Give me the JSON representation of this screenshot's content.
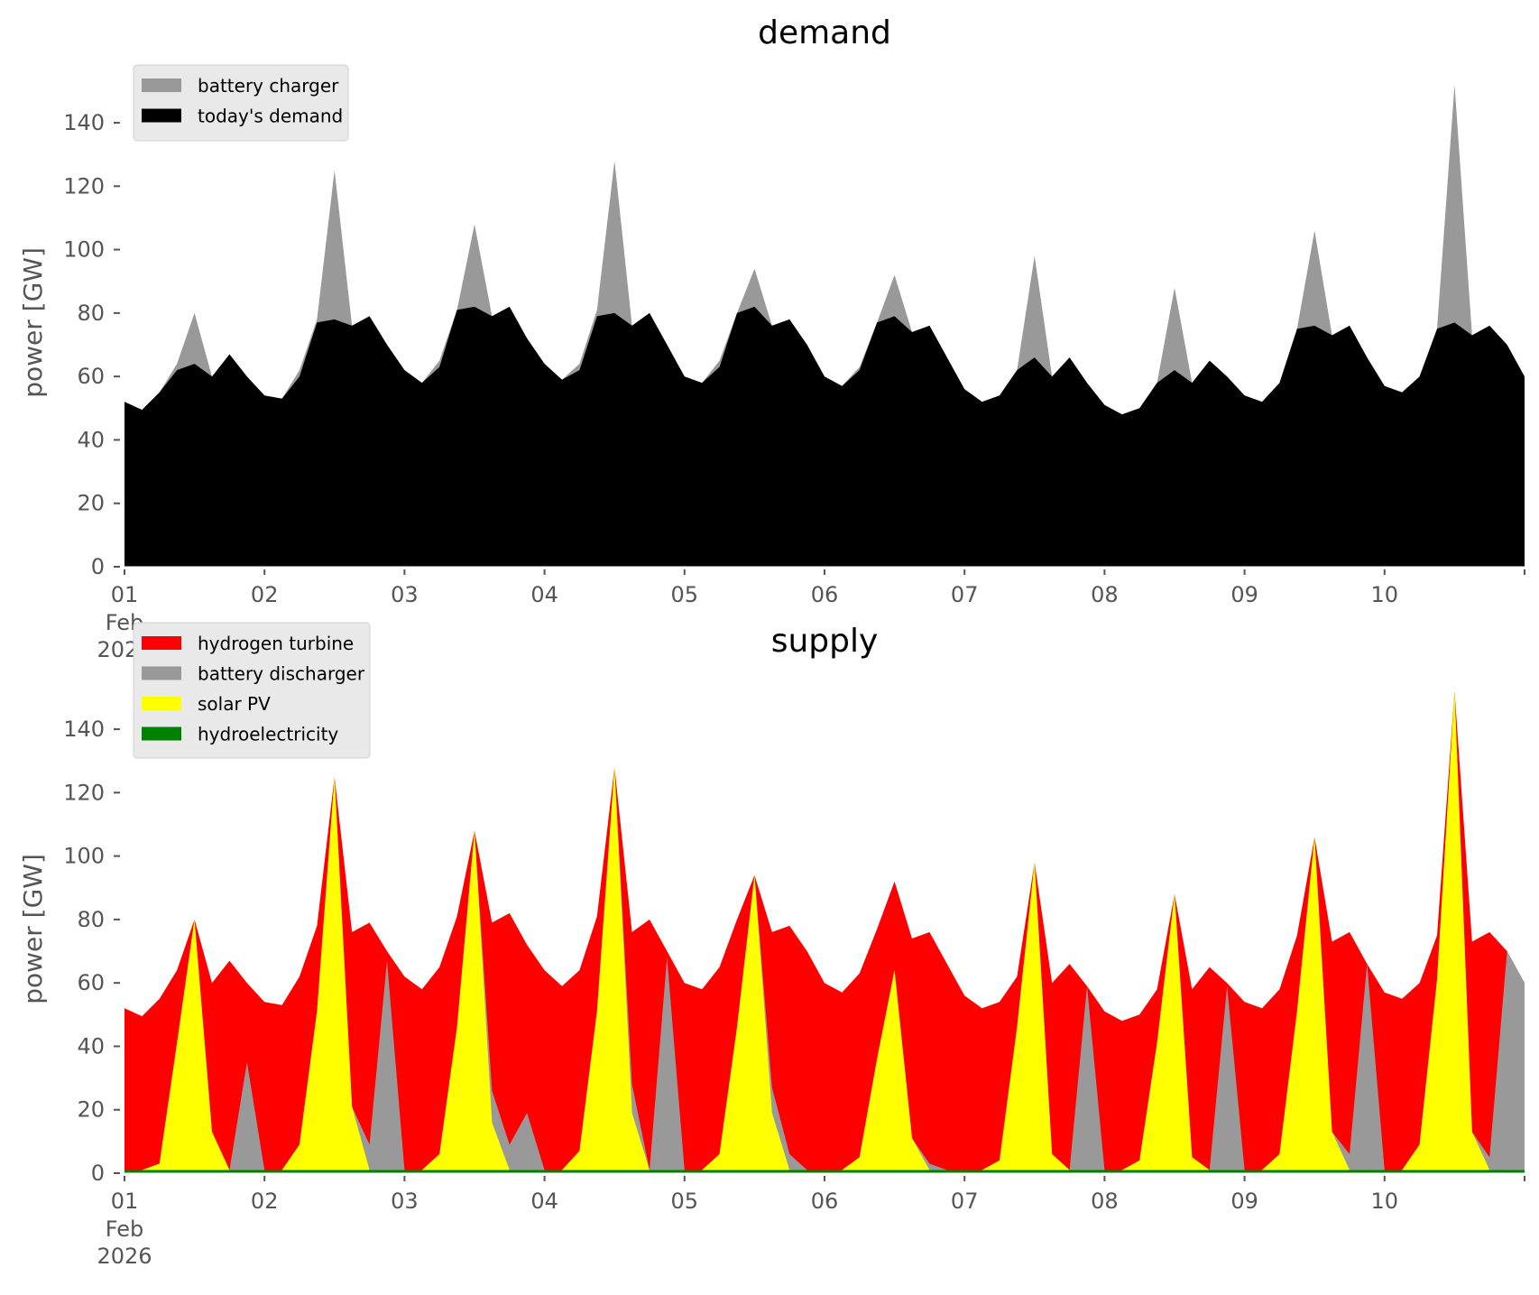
{
  "chart_data": [
    {
      "type": "area",
      "title": "demand",
      "ylabel": "power [GW]",
      "xlabel": "",
      "ylim": [
        0,
        155
      ],
      "yticks": [
        0,
        20,
        40,
        60,
        80,
        100,
        120,
        140
      ],
      "xticks": [
        "01",
        "02",
        "03",
        "04",
        "05",
        "06",
        "07",
        "08",
        "09",
        "10"
      ],
      "xtick_first_extra": [
        "Feb",
        "2026"
      ],
      "time_start": "2026-02-01 00:00",
      "step_hours": 3,
      "legend_placement": "top-left",
      "grid": false,
      "series": [
        {
          "name": "battery charger",
          "color": "#999999",
          "stacked_on": "today's demand",
          "values": [
            0,
            0,
            0,
            2,
            16,
            0,
            0,
            0,
            0,
            0,
            2,
            1,
            47,
            0,
            0,
            0,
            0,
            0,
            2,
            0,
            26,
            0,
            0,
            0,
            0,
            0,
            2,
            2,
            48,
            0,
            0,
            0,
            0,
            0,
            2,
            0,
            12,
            0,
            0,
            0,
            0,
            0,
            1,
            0,
            13,
            0,
            0,
            0,
            0,
            0,
            0,
            0,
            32,
            0,
            0,
            0,
            0,
            0,
            0,
            0,
            26,
            0,
            0,
            0,
            0,
            0,
            0,
            0,
            30,
            0,
            0,
            0,
            0,
            0,
            0,
            0,
            75,
            0,
            0,
            0,
            0
          ]
        },
        {
          "name": "today's demand",
          "color": "#000000",
          "values": [
            52,
            49.5,
            55,
            62,
            64,
            60,
            67,
            60,
            54,
            53,
            60,
            77,
            78,
            76,
            79,
            70,
            62,
            58,
            63,
            81,
            82,
            79,
            82,
            72,
            64,
            59,
            62,
            79,
            80,
            76,
            80,
            70,
            60,
            58,
            63,
            80,
            82,
            76,
            78,
            70,
            60,
            57,
            62,
            77,
            79,
            74,
            76,
            66,
            56,
            52,
            54,
            62,
            66,
            60,
            66,
            58,
            51,
            48,
            50,
            58,
            62,
            58,
            65,
            60,
            54,
            52,
            58,
            75,
            76,
            73,
            76,
            66,
            57,
            55,
            60,
            75,
            77,
            73,
            76,
            70,
            60
          ]
        }
      ]
    },
    {
      "type": "area",
      "title": "supply",
      "ylabel": "power [GW]",
      "xlabel": "",
      "ylim": [
        0,
        155
      ],
      "yticks": [
        0,
        20,
        40,
        60,
        80,
        100,
        120,
        140
      ],
      "xticks": [
        "01",
        "02",
        "03",
        "04",
        "05",
        "06",
        "07",
        "08",
        "09",
        "10"
      ],
      "xtick_first_extra": [
        "Feb",
        "2026"
      ],
      "time_start": "2026-02-01 00:00",
      "step_hours": 3,
      "legend_placement": "top-left",
      "grid": false,
      "stacking": "hydroelectricity, solar PV, battery discharger, hydrogen turbine (bottom to top)",
      "series": [
        {
          "name": "hydrogen turbine",
          "color": "#ff0000",
          "note": "remainder up to demand + battery charger"
        },
        {
          "name": "battery discharger",
          "color": "#999999",
          "values": [
            0,
            0,
            0,
            0,
            0,
            0,
            0,
            34,
            0,
            0,
            0,
            0,
            0,
            0,
            8,
            66,
            0,
            0,
            0,
            0,
            0,
            10,
            8,
            18,
            0,
            0,
            0,
            0,
            0,
            9,
            0,
            67,
            0,
            0,
            0,
            0,
            0,
            8,
            5,
            0,
            0,
            0,
            0,
            0,
            0,
            0,
            2,
            0,
            0,
            0,
            0,
            0,
            0,
            0,
            0,
            58,
            0,
            0,
            0,
            0,
            0,
            0,
            0,
            58,
            0,
            0,
            0,
            0,
            0,
            0,
            5,
            65,
            0,
            0,
            0,
            0,
            0,
            0,
            4,
            69,
            59
          ]
        },
        {
          "name": "solar PV",
          "color": "#ffff00",
          "values": [
            0,
            0,
            2,
            40,
            79,
            12,
            0,
            0,
            0,
            0,
            8,
            50,
            124,
            20,
            0,
            0,
            0,
            0,
            5,
            45,
            107,
            15,
            0,
            0,
            0,
            0,
            6,
            50,
            127,
            18,
            0,
            0,
            0,
            0,
            5,
            45,
            93,
            18,
            0,
            0,
            0,
            0,
            4,
            35,
            63,
            10,
            0,
            0,
            0,
            0,
            3,
            45,
            97,
            5,
            0,
            0,
            0,
            0,
            3,
            40,
            87,
            4,
            0,
            0,
            0,
            0,
            5,
            50,
            105,
            12,
            0,
            0,
            0,
            0,
            8,
            60,
            151,
            12,
            0,
            0,
            0
          ]
        },
        {
          "name": "hydroelectricity",
          "color": "#008000",
          "values": [
            1,
            1,
            1,
            1,
            1,
            1,
            1,
            1,
            1,
            1,
            1,
            1,
            1,
            1,
            1,
            1,
            1,
            1,
            1,
            1,
            1,
            1,
            1,
            1,
            1,
            1,
            1,
            1,
            1,
            1,
            1,
            1,
            1,
            1,
            1,
            1,
            1,
            1,
            1,
            1,
            1,
            1,
            1,
            1,
            1,
            1,
            1,
            1,
            1,
            1,
            1,
            1,
            1,
            1,
            1,
            1,
            1,
            1,
            1,
            1,
            1,
            1,
            1,
            1,
            1,
            1,
            1,
            1,
            1,
            1,
            1,
            1,
            1,
            1,
            1,
            1,
            1,
            1,
            1,
            1,
            1
          ]
        }
      ]
    }
  ]
}
